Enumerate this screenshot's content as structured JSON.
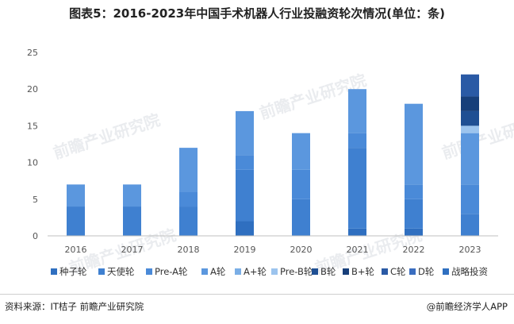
{
  "title": "图表5：2016-2023年中国手术机器人行业投融资轮次情况(单位：条)",
  "source": "资料来源：IT桔子 前瞻产业研究院",
  "brand": "@前瞻经济学人APP",
  "watermark": "前瞻产业研究院",
  "colors": {
    "种子轮": "#2f6fc0",
    "天使轮": "#3f80d0",
    "Pre-A轮": "#4a8ad8",
    "A轮": "#5b97de",
    "A+轮": "#7aaee6",
    "Pre-B轮": "#9cc4ee",
    "B轮": "#1f4f93",
    "B+轮": "#173f7a",
    "C轮": "#2a5aa5",
    "D轮": "#3a6dbf",
    "战略投资": "#2f6fc0"
  },
  "chart_data": {
    "type": "bar",
    "stacked": true,
    "categories": [
      "2016",
      "2017",
      "2018",
      "2019",
      "2020",
      "2021",
      "2022",
      "2023"
    ],
    "ylim": [
      0,
      25
    ],
    "yticks": [
      0,
      5,
      10,
      15,
      20,
      25
    ],
    "legend_position": "bottom",
    "grid": false,
    "series": [
      {
        "name": "种子轮",
        "values": [
          0,
          0,
          0,
          2,
          0,
          1,
          1,
          0
        ]
      },
      {
        "name": "天使轮",
        "values": [
          4,
          4,
          4,
          7,
          5,
          11,
          4,
          3
        ]
      },
      {
        "name": "Pre-A轮",
        "values": [
          0,
          0,
          2,
          2,
          4,
          2,
          2,
          4
        ]
      },
      {
        "name": "A轮",
        "values": [
          3,
          3,
          6,
          6,
          5,
          6,
          11,
          7
        ]
      },
      {
        "name": "A+轮",
        "values": [
          0,
          0,
          0,
          0,
          0,
          0,
          0,
          0
        ]
      },
      {
        "name": "Pre-B轮",
        "values": [
          0,
          0,
          0,
          0,
          0,
          0,
          0,
          1
        ]
      },
      {
        "name": "B轮",
        "values": [
          0,
          0,
          0,
          0,
          0,
          0,
          0,
          2
        ]
      },
      {
        "name": "B+轮",
        "values": [
          0,
          0,
          0,
          0,
          0,
          0,
          0,
          2
        ]
      },
      {
        "name": "C轮",
        "values": [
          0,
          0,
          0,
          0,
          0,
          0,
          0,
          3
        ]
      },
      {
        "name": "D轮",
        "values": [
          0,
          0,
          0,
          0,
          0,
          0,
          0,
          0
        ]
      },
      {
        "name": "战略投资",
        "values": [
          0,
          0,
          0,
          0,
          0,
          0,
          0,
          0
        ]
      }
    ]
  }
}
